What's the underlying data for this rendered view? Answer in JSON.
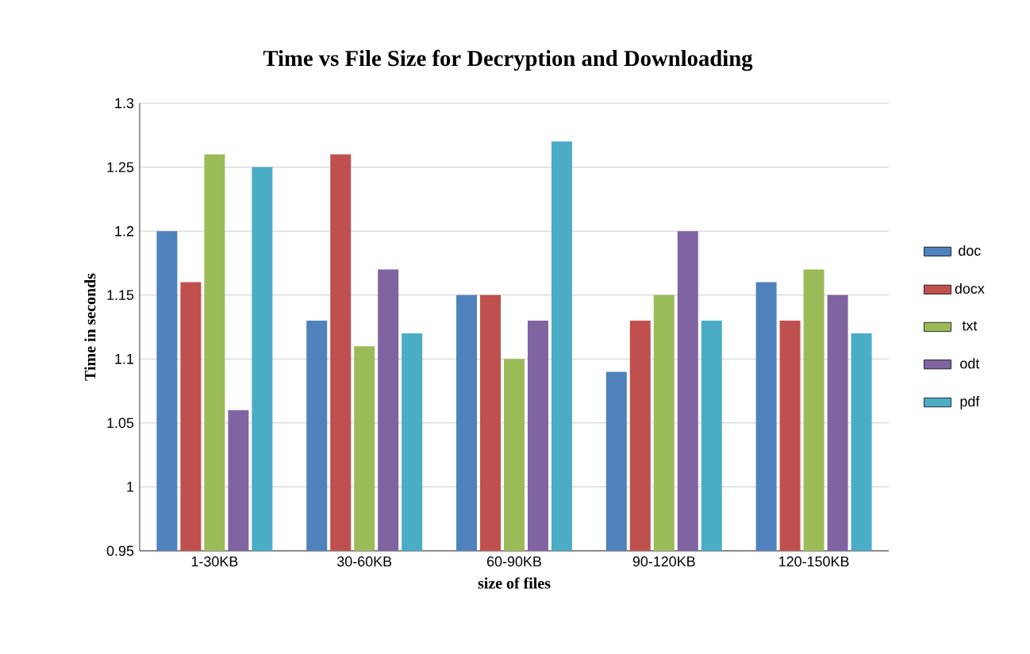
{
  "chart_data": {
    "type": "bar",
    "title": "Time vs File Size for Decryption and Downloading",
    "xlabel": "size of files",
    "ylabel": "Time in seconds",
    "categories": [
      "1-30KB",
      "30-60KB",
      "60-90KB",
      "90-120KB",
      "120-150KB"
    ],
    "series": [
      {
        "name": "doc",
        "color": "#4f81bd",
        "values": [
          1.2,
          1.13,
          1.15,
          1.09,
          1.16
        ]
      },
      {
        "name": "docx",
        "color": "#c0504d",
        "values": [
          1.16,
          1.26,
          1.15,
          1.13,
          1.13
        ]
      },
      {
        "name": "txt",
        "color": "#9bbb59",
        "values": [
          1.26,
          1.11,
          1.1,
          1.15,
          1.17
        ]
      },
      {
        "name": "odt",
        "color": "#8064a2",
        "values": [
          1.06,
          1.17,
          1.13,
          1.2,
          1.15
        ]
      },
      {
        "name": "pdf",
        "color": "#4bacc6",
        "values": [
          1.25,
          1.12,
          1.27,
          1.13,
          1.12
        ]
      }
    ],
    "ylim": [
      0.95,
      1.3
    ],
    "yticks": [
      0.95,
      1,
      1.05,
      1.1,
      1.15,
      1.2,
      1.25,
      1.3
    ],
    "grid": "y",
    "legend": "right"
  }
}
